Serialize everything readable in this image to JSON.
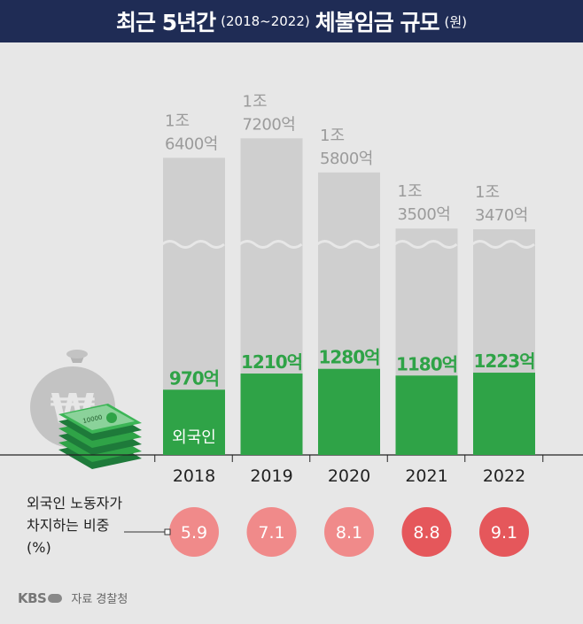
{
  "header": {
    "title_main": "최근 5년간",
    "title_period": "(2018~2022)",
    "title_rest": "체불임금 규모",
    "title_unit": "(원)"
  },
  "share_label": {
    "line1": "외국인 노동자가",
    "line2": "차지하는 비중",
    "line3": "(%)"
  },
  "footer": {
    "logo": "KBS",
    "source": "자료 경찰청"
  },
  "chart_data": {
    "type": "bar",
    "title": "최근 5년간(2018~2022) 체불임금 규모",
    "categories": [
      "2018",
      "2019",
      "2020",
      "2021",
      "2022"
    ],
    "series": [
      {
        "name": "외국인",
        "values": [
          970,
          1210,
          1280,
          1180,
          1223
        ],
        "labels": [
          "970억",
          "1210억",
          "1280억",
          "1180억",
          "1223억"
        ]
      }
    ],
    "totals": [
      16400,
      17200,
      15800,
      13500,
      13470
    ],
    "total_labels": [
      [
        "1조",
        "6400억"
      ],
      [
        "1조",
        "7200억"
      ],
      [
        "1조",
        "5800억"
      ],
      [
        "1조",
        "3500억"
      ],
      [
        "1조",
        "3470억"
      ]
    ],
    "share_percent": [
      "5.9",
      "7.1",
      "8.1",
      "8.8",
      "9.1"
    ],
    "axis_broken": true,
    "colors": {
      "foreign": "#2fa347",
      "total": "#cfcfcf",
      "total_label": "#9b9b9b",
      "share_light": "#f08a8a",
      "share_dark": "#e5575b"
    }
  }
}
